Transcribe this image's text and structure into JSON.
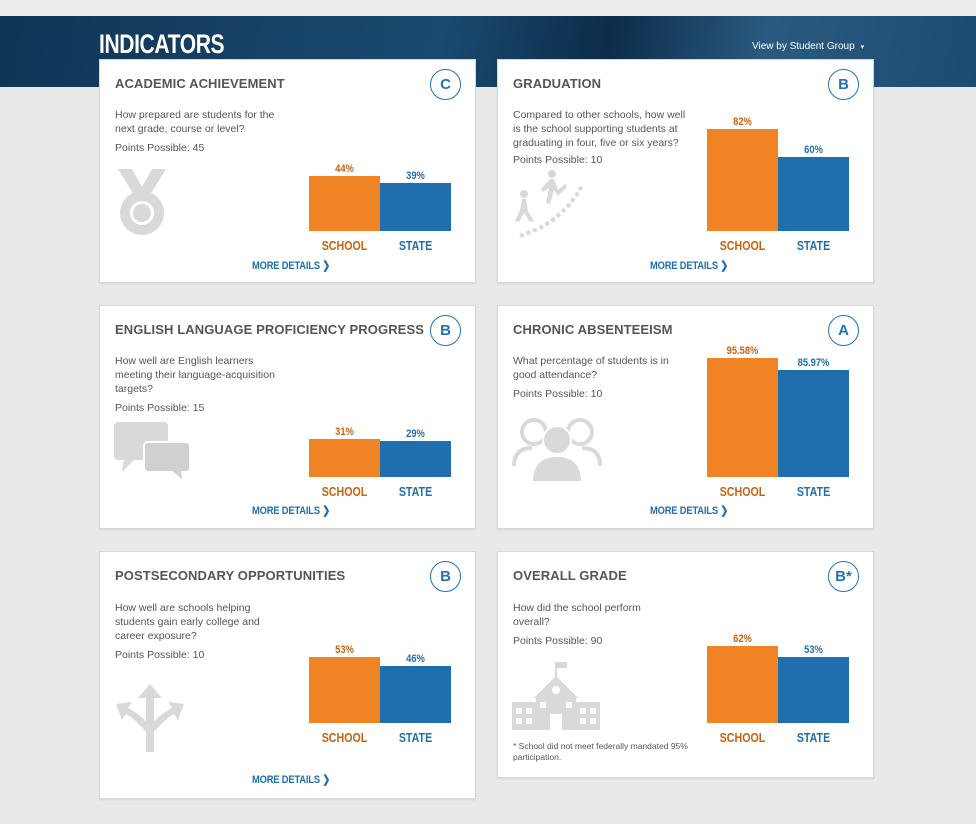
{
  "header": {
    "title": "INDICATORS",
    "view_by_label": "View by Student Group",
    "caret": "▾"
  },
  "labels": {
    "school": "SCHOOL",
    "state": "STATE",
    "more_details": "MORE DETAILS ❯"
  },
  "colors": {
    "school": "#f08424",
    "state": "#1f6fae",
    "grade_ring": "#1f73b7",
    "banner": "#15405f"
  },
  "cards": [
    {
      "title": "ACADEMIC ACHIEVEMENT",
      "grade": "C",
      "question": "How prepared are students for the next grade, course or level?",
      "points": "Points Possible: 45",
      "icon": "medal-icon",
      "school_pct": 44,
      "state_pct": 39,
      "school_label": "44%",
      "state_label": "39%"
    },
    {
      "title": "GRADUATION",
      "grade": "B",
      "question": "Compared to other schools, how well is the school supporting students at graduating in four, five or six years?",
      "points": "Points Possible: 10",
      "icon": "climbing-steps-icon",
      "school_pct": 82,
      "state_pct": 60,
      "school_label": "82%",
      "state_label": "60%"
    },
    {
      "title": "ENGLISH LANGUAGE PROFICIENCY PROGRESS",
      "grade": "B",
      "question": "How well are English learners meeting their language-acquisition targets?",
      "points": "Points Possible: 15",
      "icon": "speech-bubbles-icon",
      "school_pct": 31,
      "state_pct": 29,
      "school_label": "31%",
      "state_label": "29%"
    },
    {
      "title": "CHRONIC ABSENTEEISM",
      "grade": "A",
      "question": "What percentage of students is in good attendance?",
      "points": "Points Possible: 10",
      "icon": "people-group-icon",
      "school_pct": 95.58,
      "state_pct": 85.97,
      "school_label": "95.58%",
      "state_label": "85.97%"
    },
    {
      "title": "POSTSECONDARY OPPORTUNITIES",
      "grade": "B",
      "question": "How well are schools helping students gain early college and career exposure?",
      "points": "Points Possible: 10",
      "icon": "split-arrows-icon",
      "school_pct": 53,
      "state_pct": 46,
      "school_label": "53%",
      "state_label": "46%"
    },
    {
      "title": "OVERALL GRADE",
      "grade": "B*",
      "question": "How did the school perform overall?",
      "points": "Points Possible: 90",
      "icon": "school-building-icon",
      "school_pct": 62,
      "state_pct": 53,
      "school_label": "62%",
      "state_label": "53%",
      "footnote": "* School did not meet federally mandated 95% participation."
    }
  ]
}
